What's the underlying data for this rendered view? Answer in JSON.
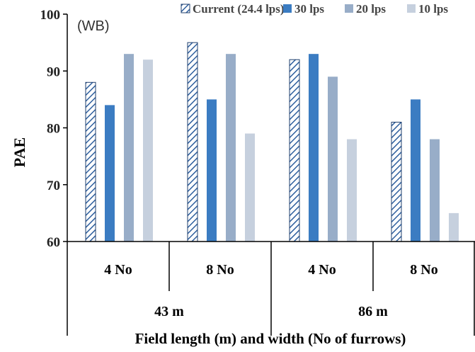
{
  "chart_data": {
    "type": "bar",
    "annotation": "(WB)",
    "ylabel": "PAE",
    "xlabel": "Field length (m) and width (No of furrows)",
    "ylim": [
      60,
      100
    ],
    "yticks": [
      60,
      70,
      80,
      90,
      100
    ],
    "grid": false,
    "legend_position": "top",
    "groups": [
      {
        "length": "43 m",
        "widths": [
          "4 No",
          "8 No"
        ]
      },
      {
        "length": "86 m",
        "widths": [
          "4 No",
          "8 No"
        ]
      }
    ],
    "categories": [
      "4 No",
      "8 No",
      "4 No",
      "8 No"
    ],
    "series": [
      {
        "name": "Current (24.4 lps)",
        "values": [
          88,
          95,
          92,
          81
        ],
        "color": "#2e5f9e",
        "pattern": "hatched"
      },
      {
        "name": "30 lps",
        "values": [
          84,
          85,
          93,
          85
        ],
        "color": "#3b7cc2",
        "pattern": "solid"
      },
      {
        "name": "20 lps",
        "values": [
          93,
          93,
          89,
          78
        ],
        "color": "#98adc8",
        "pattern": "solid"
      },
      {
        "name": "10 lps",
        "values": [
          92,
          79,
          78,
          65
        ],
        "color": "#c6d0de",
        "pattern": "solid"
      }
    ]
  }
}
